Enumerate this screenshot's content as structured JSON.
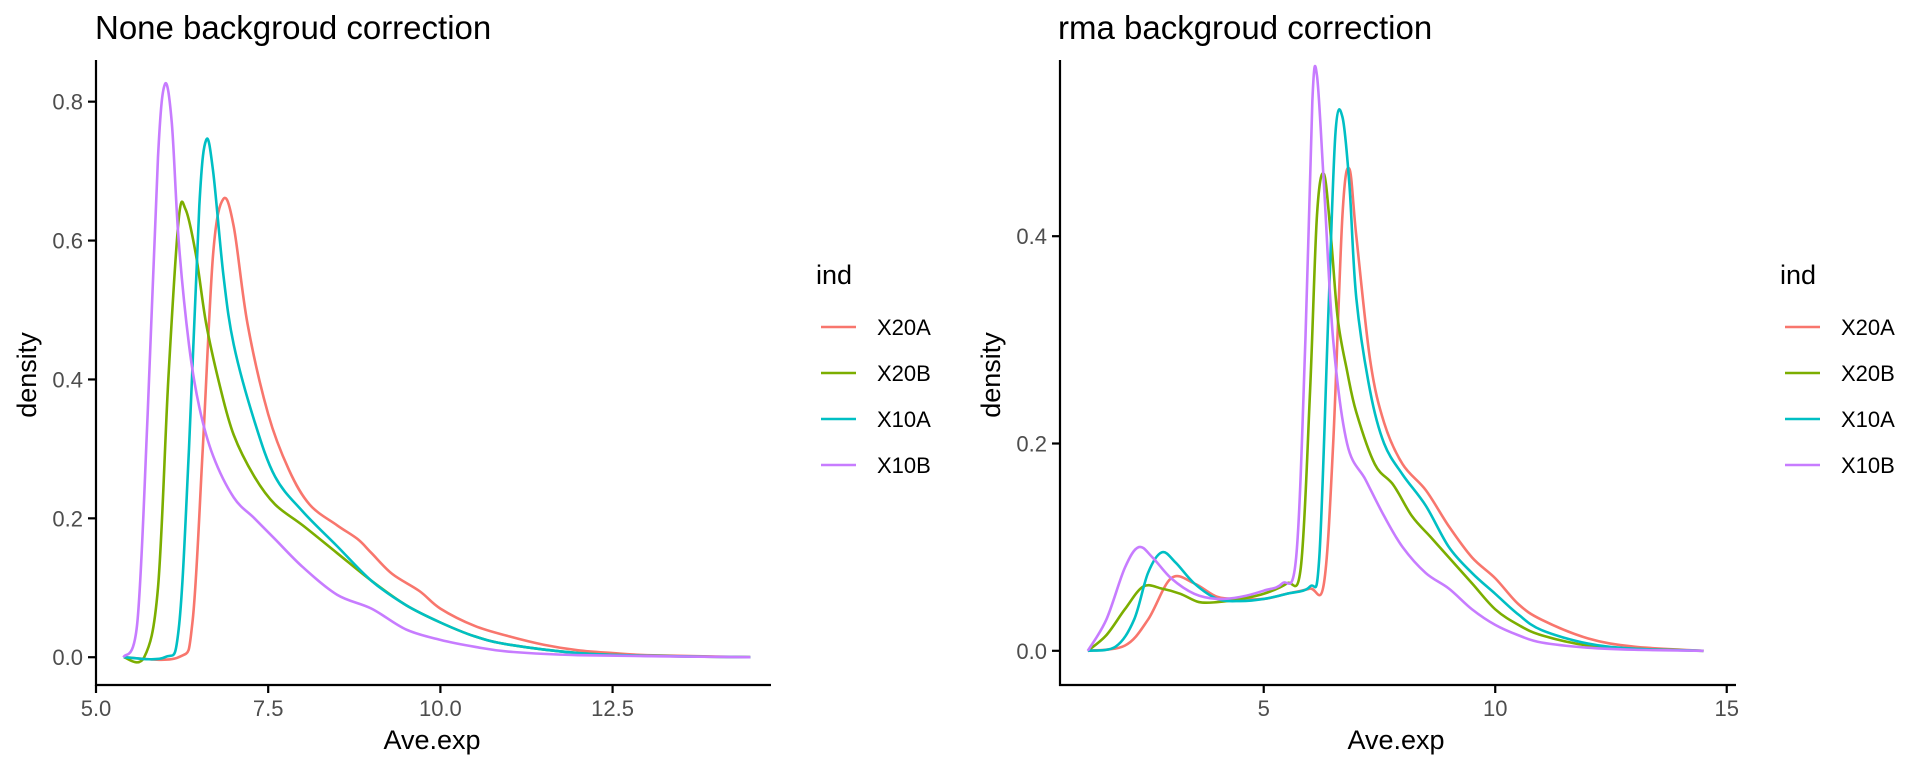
{
  "colors": {
    "X20A": "#F8766D",
    "X20B": "#7CAE00",
    "X10A": "#00BFC4",
    "X10B": "#C77CFF"
  },
  "chart_data": [
    {
      "type": "line",
      "title": "None backgroud correction",
      "xlabel": "Ave.exp",
      "ylabel": "density",
      "xlim": [
        5.0,
        14.8
      ],
      "ylim": [
        -0.04,
        0.86
      ],
      "xticks": [
        5.0,
        7.5,
        10.0,
        12.5
      ],
      "xtick_labels": [
        "5.0",
        "7.5",
        "10.0",
        "12.5"
      ],
      "yticks": [
        0.0,
        0.2,
        0.4,
        0.6,
        0.8
      ],
      "ytick_labels": [
        "0.0",
        "0.2",
        "0.4",
        "0.6",
        "0.8"
      ],
      "grid": false,
      "legend": {
        "title": "ind",
        "position": "right"
      },
      "series": [
        {
          "name": "X20A",
          "color": "#F8766D",
          "x": [
            5.4,
            6.2,
            6.4,
            6.55,
            6.7,
            6.85,
            7.0,
            7.2,
            7.5,
            7.8,
            8.1,
            8.5,
            8.8,
            9.0,
            9.3,
            9.7,
            10.0,
            10.5,
            11.0,
            11.5,
            12.0,
            12.5,
            13.0,
            14.5
          ],
          "y": [
            0.0,
            0.0,
            0.05,
            0.3,
            0.58,
            0.66,
            0.62,
            0.48,
            0.35,
            0.27,
            0.22,
            0.19,
            0.17,
            0.15,
            0.12,
            0.095,
            0.07,
            0.045,
            0.03,
            0.018,
            0.01,
            0.006,
            0.003,
            0.0
          ]
        },
        {
          "name": "X20B",
          "color": "#7CAE00",
          "x": [
            5.4,
            5.7,
            5.9,
            6.05,
            6.2,
            6.3,
            6.45,
            6.6,
            6.8,
            7.0,
            7.3,
            7.6,
            8.0,
            8.5,
            9.0,
            9.5,
            10.0,
            10.5,
            11.0,
            12.0,
            13.0,
            14.5
          ],
          "y": [
            0.0,
            0.0,
            0.1,
            0.4,
            0.63,
            0.645,
            0.58,
            0.48,
            0.39,
            0.32,
            0.26,
            0.22,
            0.19,
            0.15,
            0.11,
            0.075,
            0.05,
            0.03,
            0.018,
            0.006,
            0.002,
            0.0
          ]
        },
        {
          "name": "X10A",
          "color": "#00BFC4",
          "x": [
            5.4,
            6.0,
            6.2,
            6.35,
            6.5,
            6.6,
            6.7,
            6.85,
            7.0,
            7.3,
            7.6,
            8.0,
            8.5,
            9.0,
            9.5,
            10.0,
            10.5,
            11.0,
            12.0,
            13.0,
            14.5
          ],
          "y": [
            0.0,
            0.0,
            0.04,
            0.3,
            0.65,
            0.745,
            0.7,
            0.55,
            0.45,
            0.34,
            0.26,
            0.21,
            0.16,
            0.11,
            0.075,
            0.05,
            0.03,
            0.018,
            0.006,
            0.002,
            0.0
          ]
        },
        {
          "name": "X10B",
          "color": "#C77CFF",
          "x": [
            5.4,
            5.6,
            5.75,
            5.9,
            6.0,
            6.1,
            6.2,
            6.35,
            6.5,
            6.7,
            7.0,
            7.3,
            7.6,
            8.0,
            8.5,
            9.0,
            9.5,
            10.0,
            10.5,
            11.0,
            12.0,
            14.5
          ],
          "y": [
            0.0,
            0.05,
            0.35,
            0.72,
            0.825,
            0.77,
            0.6,
            0.45,
            0.36,
            0.29,
            0.23,
            0.2,
            0.17,
            0.13,
            0.09,
            0.07,
            0.04,
            0.025,
            0.015,
            0.008,
            0.003,
            0.0
          ]
        }
      ]
    },
    {
      "type": "line",
      "title": "rma backgroud correction",
      "xlabel": "Ave.exp",
      "ylabel": "density",
      "xlim": [
        0.6,
        15.2
      ],
      "ylim": [
        -0.033,
        0.57
      ],
      "xticks": [
        5,
        10,
        15
      ],
      "xtick_labels": [
        "5",
        "10",
        "15"
      ],
      "yticks": [
        0.0,
        0.2,
        0.4
      ],
      "ytick_labels": [
        "0.0",
        "0.2",
        "0.4"
      ],
      "grid": false,
      "legend": {
        "title": "ind",
        "position": "right"
      },
      "series": [
        {
          "name": "X20A",
          "color": "#F8766D",
          "x": [
            1.2,
            2.0,
            2.5,
            3.0,
            3.5,
            4.0,
            4.5,
            5.0,
            5.5,
            6.0,
            6.3,
            6.5,
            6.7,
            6.85,
            7.0,
            7.3,
            7.6,
            8.0,
            8.5,
            9.0,
            9.5,
            10.0,
            10.5,
            11.0,
            12.0,
            13.0,
            14.5
          ],
          "y": [
            0.0,
            0.005,
            0.03,
            0.07,
            0.065,
            0.052,
            0.05,
            0.05,
            0.055,
            0.06,
            0.065,
            0.2,
            0.42,
            0.465,
            0.4,
            0.28,
            0.22,
            0.18,
            0.155,
            0.12,
            0.09,
            0.07,
            0.045,
            0.03,
            0.012,
            0.004,
            0.0
          ]
        },
        {
          "name": "X20B",
          "color": "#7CAE00",
          "x": [
            1.2,
            1.6,
            2.0,
            2.4,
            2.8,
            3.2,
            3.6,
            4.0,
            4.5,
            5.0,
            5.5,
            5.8,
            6.0,
            6.15,
            6.3,
            6.45,
            6.6,
            6.8,
            7.0,
            7.4,
            7.8,
            8.2,
            8.6,
            9.0,
            9.5,
            10.0,
            10.5,
            11.0,
            12.0,
            13.0,
            14.5
          ],
          "y": [
            0.0,
            0.015,
            0.04,
            0.062,
            0.06,
            0.055,
            0.047,
            0.047,
            0.05,
            0.055,
            0.065,
            0.08,
            0.25,
            0.42,
            0.46,
            0.4,
            0.32,
            0.27,
            0.23,
            0.18,
            0.16,
            0.13,
            0.11,
            0.09,
            0.065,
            0.04,
            0.025,
            0.015,
            0.005,
            0.002,
            0.0
          ]
        },
        {
          "name": "X10A",
          "color": "#00BFC4",
          "x": [
            1.2,
            1.8,
            2.2,
            2.5,
            2.8,
            3.1,
            3.5,
            4.0,
            4.5,
            5.0,
            5.5,
            6.0,
            6.2,
            6.4,
            6.55,
            6.7,
            6.85,
            7.0,
            7.3,
            7.6,
            8.0,
            8.5,
            9.0,
            9.5,
            10.0,
            10.5,
            11.0,
            12.0,
            13.0,
            14.5
          ],
          "y": [
            0.0,
            0.004,
            0.03,
            0.075,
            0.095,
            0.085,
            0.065,
            0.05,
            0.048,
            0.05,
            0.055,
            0.062,
            0.09,
            0.33,
            0.5,
            0.515,
            0.45,
            0.34,
            0.25,
            0.2,
            0.17,
            0.14,
            0.1,
            0.075,
            0.055,
            0.035,
            0.02,
            0.007,
            0.002,
            0.0
          ]
        },
        {
          "name": "X10B",
          "color": "#C77CFF",
          "x": [
            1.2,
            1.6,
            2.0,
            2.3,
            2.6,
            3.0,
            3.5,
            4.0,
            4.5,
            5.0,
            5.4,
            5.7,
            5.9,
            6.05,
            6.15,
            6.3,
            6.5,
            6.8,
            7.2,
            7.6,
            8.0,
            8.5,
            9.0,
            9.5,
            10.0,
            10.5,
            11.0,
            12.0,
            13.0,
            14.5
          ],
          "y": [
            0.0,
            0.03,
            0.08,
            0.1,
            0.09,
            0.07,
            0.055,
            0.05,
            0.052,
            0.058,
            0.065,
            0.09,
            0.3,
            0.53,
            0.555,
            0.45,
            0.3,
            0.2,
            0.165,
            0.13,
            0.1,
            0.075,
            0.06,
            0.04,
            0.025,
            0.015,
            0.008,
            0.003,
            0.001,
            0.0
          ]
        }
      ]
    }
  ]
}
